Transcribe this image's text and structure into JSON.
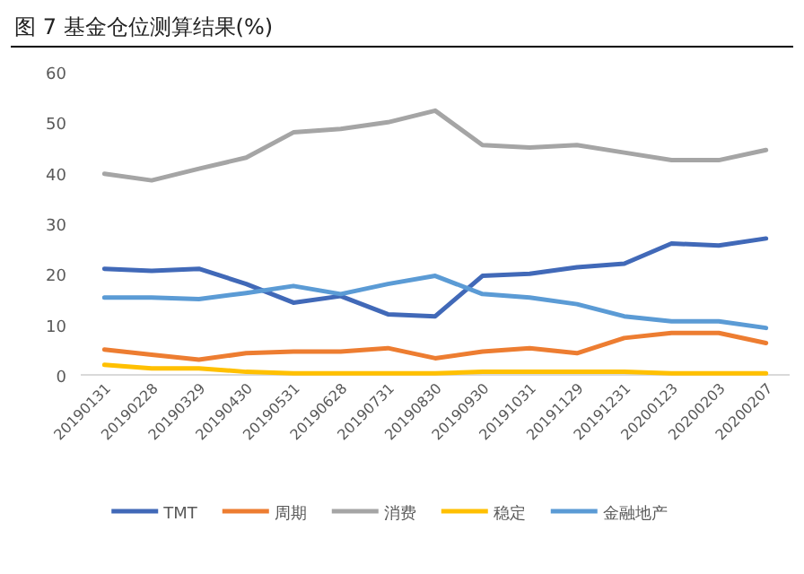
{
  "chart_data": {
    "type": "line",
    "title": "图 7 基金仓位测算结果(%)",
    "categories": [
      "20190131",
      "20190228",
      "20190329",
      "20190430",
      "20190531",
      "20190628",
      "20190731",
      "20190830",
      "20190930",
      "20191031",
      "20191129",
      "20191231",
      "20200123",
      "20200203",
      "20200207"
    ],
    "series": [
      {
        "name": "TMT",
        "color": "#4169b8",
        "values": [
          21,
          20.6,
          21,
          18,
          14.3,
          15.6,
          12,
          11.6,
          19.6,
          20,
          21.3,
          22,
          26,
          25.6,
          27
        ]
      },
      {
        "name": "周期",
        "color": "#ed7d31",
        "values": [
          5,
          4,
          3,
          4.3,
          4.6,
          4.6,
          5.3,
          3.3,
          4.6,
          5.3,
          4.3,
          7.3,
          8.3,
          8.3,
          6.3
        ]
      },
      {
        "name": "消费",
        "color": "#a5a5a5",
        "values": [
          39.8,
          38.5,
          40.8,
          43,
          48,
          48.7,
          50,
          52.3,
          45.5,
          45,
          45.5,
          44,
          42.5,
          42.5,
          44.5
        ]
      },
      {
        "name": "稳定",
        "color": "#ffc000",
        "values": [
          2,
          1.3,
          1.3,
          0.6,
          0.3,
          0.3,
          0.3,
          0.3,
          0.6,
          0.6,
          0.6,
          0.6,
          0.3,
          0.3,
          0.3
        ]
      },
      {
        "name": "金融地产",
        "color": "#5b9bd5",
        "values": [
          15.3,
          15.3,
          15,
          16.2,
          17.6,
          16,
          18,
          19.6,
          16,
          15.3,
          14,
          11.6,
          10.6,
          10.6,
          9.3
        ]
      }
    ],
    "ylim": [
      0,
      60
    ],
    "yticks": [
      0,
      10,
      20,
      30,
      40,
      50,
      60
    ],
    "grid": false,
    "legend": "bottom",
    "marker": "none",
    "line_style": "solid"
  }
}
